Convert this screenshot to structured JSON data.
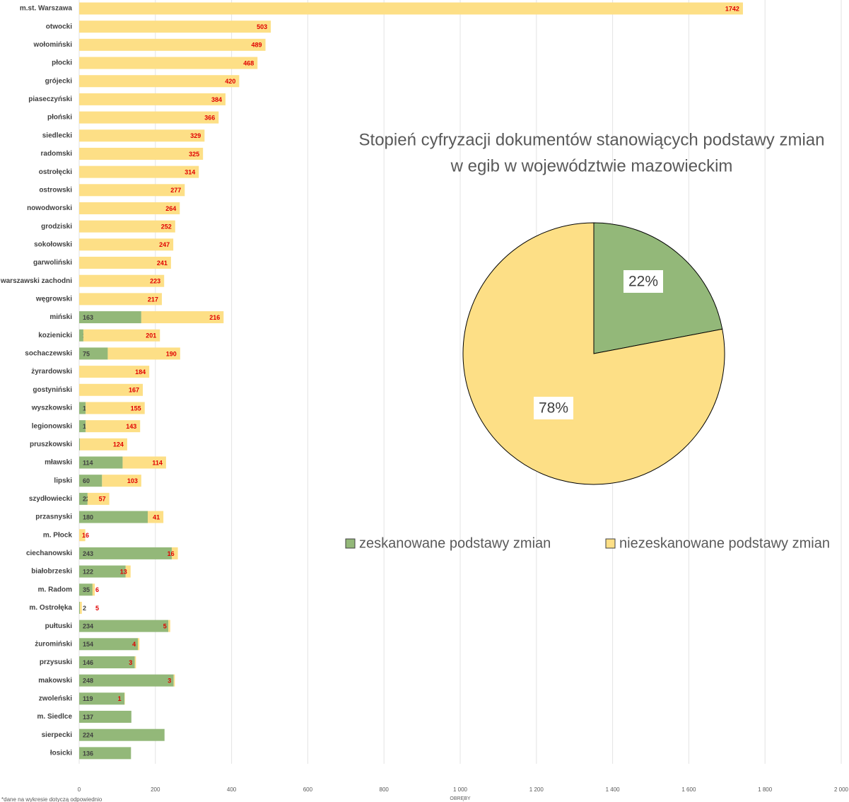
{
  "chart_data": [
    {
      "type": "stacked-bar-horizontal",
      "categories": [
        "m.st. Warszawa",
        "otwocki",
        "wołomiński",
        "płocki",
        "grójecki",
        "piaseczyński",
        "płoński",
        "siedlecki",
        "radomski",
        "ostrołęcki",
        "ostrowski",
        "nowodworski",
        "grodziski",
        "sokołowski",
        "garwoliński",
        "warszawski zachodni",
        "węgrowski",
        "miński",
        "kozienicki",
        "sochaczewski",
        "żyrardowski",
        "gostyniński",
        "wyszkowski",
        "legionowski",
        "pruszkowski",
        "mławski",
        "lipski",
        "szydłowiecki",
        "przasnyski",
        "m. Płock",
        "ciechanowski",
        "białobrzeski",
        "m. Radom",
        "m. Ostrołęka",
        "pułtuski",
        "żuromiński",
        "przysuski",
        "makowski",
        "zwoleński",
        "m. Siedlce",
        "sierpecki",
        "łosicki"
      ],
      "series": [
        {
          "color": "#93b879",
          "values": [
            null,
            null,
            null,
            null,
            null,
            null,
            null,
            null,
            null,
            null,
            null,
            null,
            null,
            null,
            null,
            null,
            null,
            163,
            11,
            75,
            null,
            null,
            17,
            17,
            2,
            114,
            60,
            22,
            180,
            null,
            243,
            122,
            35,
            2,
            234,
            154,
            146,
            248,
            119,
            137,
            224,
            136
          ]
        },
        {
          "color": "#fddf86",
          "values": [
            1742,
            503,
            489,
            468,
            420,
            384,
            366,
            329,
            325,
            314,
            277,
            264,
            252,
            247,
            241,
            223,
            217,
            216,
            201,
            190,
            184,
            167,
            155,
            143,
            124,
            114,
            103,
            57,
            41,
            16,
            16,
            13,
            6,
            5,
            5,
            4,
            3,
            3,
            1,
            null,
            null,
            null
          ]
        }
      ],
      "xlim": [
        0,
        2000
      ],
      "xticks": [
        0,
        200,
        400,
        600,
        800,
        {
          "value": 1000,
          "label": "1 000"
        },
        {
          "value": 1200,
          "label": "1 200"
        },
        {
          "value": 1400,
          "label": "1 400"
        },
        {
          "value": 1600,
          "label": "1 600"
        },
        {
          "value": 1800,
          "label": "1 800"
        },
        {
          "value": 2000,
          "label": "2 000"
        }
      ],
      "xlabel": "OBRĘBY",
      "grid": true,
      "note": "*dane na wykresie dotyczą odpowiednio"
    },
    {
      "type": "pie",
      "title": [
        "Stopień cyfryzacji dokumentów stanowiących podstawy zmian",
        "w egib w województwie mazowieckim"
      ],
      "categories": [
        "zeskanowane podstawy zmian",
        "niezeskanowane podstawy zmian"
      ],
      "values": [
        22,
        78
      ],
      "value_labels": [
        "22%",
        "78%"
      ],
      "colors": [
        "#93b879",
        "#fddf86"
      ],
      "legend": "bottom"
    }
  ]
}
